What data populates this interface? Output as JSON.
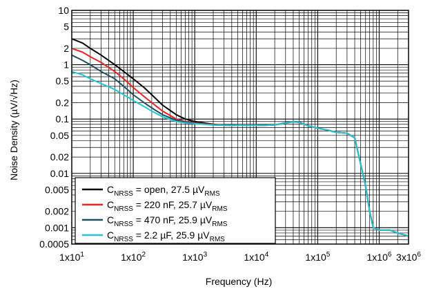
{
  "chart_data": {
    "type": "line",
    "xlabel": "Frequency (Hz)",
    "ylabel": "Noise Density (µV/√Hz)",
    "xscale": "log",
    "yscale": "log",
    "xlim": [
      10,
      3000000
    ],
    "ylim": [
      0.0005,
      10
    ],
    "grid": true,
    "legend_position": "bottom-left",
    "x_tick_labels": [
      {
        "value": 10,
        "base": "1x10",
        "exp": "1"
      },
      {
        "value": 100,
        "base": "1x10",
        "exp": "2"
      },
      {
        "value": 1000,
        "base": "1x10",
        "exp": "3"
      },
      {
        "value": 10000,
        "base": "1x10",
        "exp": "4"
      },
      {
        "value": 100000,
        "base": "1x10",
        "exp": "5"
      },
      {
        "value": 1000000,
        "base": "1x10",
        "exp": "6"
      },
      {
        "value": 3000000,
        "base": "3x10",
        "exp": "6"
      }
    ],
    "y_tick_labels": [
      {
        "value": 10,
        "label": "10"
      },
      {
        "value": 5,
        "label": "5"
      },
      {
        "value": 2,
        "label": "2"
      },
      {
        "value": 1,
        "label": "1"
      },
      {
        "value": 0.5,
        "label": "0.5"
      },
      {
        "value": 0.2,
        "label": "0.2"
      },
      {
        "value": 0.1,
        "label": "0.1"
      },
      {
        "value": 0.05,
        "label": "0.05"
      },
      {
        "value": 0.02,
        "label": "0.02"
      },
      {
        "value": 0.01,
        "label": "0.01"
      },
      {
        "value": 0.005,
        "label": "0.005"
      },
      {
        "value": 0.002,
        "label": "0.002"
      },
      {
        "value": 0.001,
        "label": "0.001"
      },
      {
        "value": 0.0005,
        "label": "0.0005"
      }
    ],
    "series": [
      {
        "name": "CNRSS = open, 27.5 µVRMS",
        "legend": {
          "c": "C",
          "sub1": "NRSS",
          "mid": " = open, 27.5 µV",
          "sub2": "RMS"
        },
        "color": "#000000",
        "x": [
          10,
          15,
          20,
          30,
          50,
          70,
          100,
          150,
          200,
          300,
          500,
          700,
          1000,
          2000,
          3000,
          5000,
          10000,
          20000,
          30000,
          40000,
          50000,
          70000,
          100000,
          150000,
          200000,
          300000,
          400000,
          600000,
          700000,
          800000,
          1000000,
          1500000,
          2000000,
          3000000
        ],
        "y": [
          3.0,
          2.5,
          2.0,
          1.5,
          1.0,
          0.75,
          0.55,
          0.38,
          0.28,
          0.18,
          0.12,
          0.1,
          0.09,
          0.08,
          0.077,
          0.076,
          0.076,
          0.078,
          0.085,
          0.09,
          0.088,
          0.075,
          0.068,
          0.062,
          0.057,
          0.055,
          0.045,
          0.006,
          0.002,
          0.001,
          0.0009,
          0.0009,
          0.0008,
          0.0007
        ]
      },
      {
        "name": "CNRSS = 220 nF, 25.7 µVRMS",
        "legend": {
          "c": "C",
          "sub1": "NRSS",
          "mid": " = 220 nF, 25.7 µV",
          "sub2": "RMS"
        },
        "color": "#ee2222",
        "x": [
          10,
          15,
          20,
          30,
          50,
          70,
          100,
          150,
          200,
          300,
          500,
          700,
          1000,
          2000,
          3000,
          5000,
          10000,
          20000,
          30000,
          40000,
          50000,
          70000,
          100000,
          150000,
          200000,
          300000,
          400000,
          600000,
          700000,
          800000,
          1000000,
          1500000,
          2000000,
          3000000
        ],
        "y": [
          2.0,
          1.7,
          1.4,
          1.1,
          0.75,
          0.55,
          0.38,
          0.26,
          0.2,
          0.14,
          0.1,
          0.09,
          0.085,
          0.079,
          0.077,
          0.076,
          0.076,
          0.078,
          0.084,
          0.089,
          0.087,
          0.075,
          0.068,
          0.062,
          0.057,
          0.055,
          0.045,
          0.006,
          0.002,
          0.001,
          0.0009,
          0.0009,
          0.0008,
          0.0007
        ]
      },
      {
        "name": "CNRSS = 470 nF, 25.9 µVRMS",
        "legend": {
          "c": "C",
          "sub1": "NRSS",
          "mid": " = 470 nF, 25.9 µV",
          "sub2": "RMS"
        },
        "color": "#1f4f5a",
        "x": [
          10,
          15,
          20,
          30,
          50,
          70,
          100,
          150,
          200,
          300,
          500,
          700,
          1000,
          2000,
          3000,
          5000,
          10000,
          20000,
          30000,
          40000,
          50000,
          70000,
          100000,
          150000,
          200000,
          300000,
          400000,
          600000,
          700000,
          800000,
          1000000,
          1500000,
          2000000,
          3000000
        ],
        "y": [
          1.5,
          1.2,
          1.0,
          0.75,
          0.55,
          0.4,
          0.28,
          0.2,
          0.16,
          0.12,
          0.095,
          0.088,
          0.083,
          0.078,
          0.077,
          0.076,
          0.076,
          0.078,
          0.084,
          0.089,
          0.087,
          0.075,
          0.068,
          0.062,
          0.057,
          0.055,
          0.045,
          0.006,
          0.002,
          0.001,
          0.0009,
          0.0009,
          0.0008,
          0.0007
        ]
      },
      {
        "name": "CNRSS = 2.2 µF, 25.9 µVRMS",
        "legend": {
          "c": "C",
          "sub1": "NRSS",
          "mid": " = 2.2 µF, 25.9 µV",
          "sub2": "RMS"
        },
        "color": "#22c4d6",
        "x": [
          10,
          15,
          20,
          30,
          50,
          70,
          100,
          150,
          200,
          300,
          500,
          700,
          1000,
          2000,
          3000,
          5000,
          10000,
          20000,
          30000,
          40000,
          50000,
          70000,
          100000,
          150000,
          200000,
          300000,
          400000,
          600000,
          700000,
          800000,
          1000000,
          1500000,
          2000000,
          3000000
        ],
        "y": [
          0.75,
          0.65,
          0.55,
          0.45,
          0.35,
          0.28,
          0.22,
          0.17,
          0.14,
          0.11,
          0.09,
          0.085,
          0.082,
          0.078,
          0.077,
          0.076,
          0.076,
          0.078,
          0.084,
          0.089,
          0.087,
          0.075,
          0.068,
          0.062,
          0.057,
          0.055,
          0.045,
          0.006,
          0.002,
          0.001,
          0.0009,
          0.0009,
          0.0008,
          0.0007
        ]
      }
    ]
  }
}
